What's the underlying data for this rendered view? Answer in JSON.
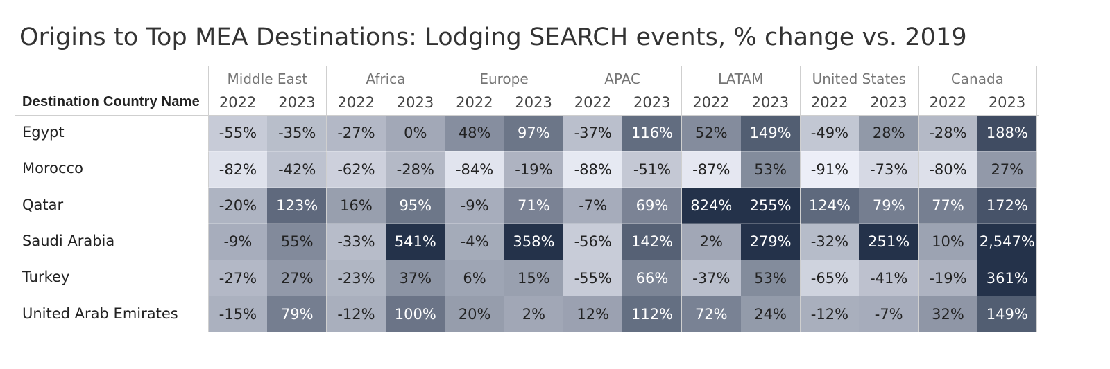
{
  "title": "Origins to Top MEA Destinations: Lodging SEARCH events, % change vs. 2019",
  "chart_data": {
    "type": "heatmap",
    "title": "Origins to Top MEA Destinations: Lodging SEARCH events, % change vs. 2019",
    "row_header": "Destination Country Name",
    "regions": [
      "Middle East",
      "Africa",
      "Europe",
      "APAC",
      "LATAM",
      "United States",
      "Canada"
    ],
    "years": [
      "2022",
      "2023"
    ],
    "rows": [
      "Egypt",
      "Morocco",
      "Qatar",
      "Saudi Arabia",
      "Turkey",
      "United Arab Emirates"
    ],
    "values": [
      [
        -55,
        -35,
        -27,
        0,
        48,
        97,
        -37,
        116,
        52,
        149,
        -49,
        28,
        -28,
        188
      ],
      [
        -82,
        -42,
        -62,
        -28,
        -84,
        -19,
        -88,
        -51,
        -87,
        53,
        -91,
        -73,
        -80,
        27
      ],
      [
        -20,
        123,
        16,
        95,
        -9,
        71,
        -7,
        69,
        824,
        255,
        124,
        79,
        77,
        172
      ],
      [
        -9,
        55,
        -33,
        541,
        -4,
        358,
        -56,
        142,
        2,
        279,
        -32,
        251,
        10,
        2547
      ],
      [
        -27,
        27,
        -23,
        37,
        6,
        15,
        -55,
        66,
        -37,
        53,
        -65,
        -41,
        -19,
        361
      ],
      [
        -15,
        79,
        -12,
        100,
        20,
        2,
        12,
        112,
        72,
        24,
        -12,
        -7,
        32,
        149
      ]
    ],
    "labels": [
      [
        "-55%",
        "-35%",
        "-27%",
        "0%",
        "48%",
        "97%",
        "-37%",
        "116%",
        "52%",
        "149%",
        "-49%",
        "28%",
        "-28%",
        "188%"
      ],
      [
        "-82%",
        "-42%",
        "-62%",
        "-28%",
        "-84%",
        "-19%",
        "-88%",
        "-51%",
        "-87%",
        "53%",
        "-91%",
        "-73%",
        "-80%",
        "27%"
      ],
      [
        "-20%",
        "123%",
        "16%",
        "95%",
        "-9%",
        "71%",
        "-7%",
        "69%",
        "824%",
        "255%",
        "124%",
        "79%",
        "77%",
        "172%"
      ],
      [
        "-9%",
        "55%",
        "-33%",
        "541%",
        "-4%",
        "358%",
        "-56%",
        "142%",
        "2%",
        "279%",
        "-32%",
        "251%",
        "10%",
        "2,547%"
      ],
      [
        "-27%",
        "27%",
        "-23%",
        "37%",
        "6%",
        "15%",
        "-55%",
        "66%",
        "-37%",
        "53%",
        "-65%",
        "-41%",
        "-19%",
        "361%"
      ],
      [
        "-15%",
        "79%",
        "-12%",
        "100%",
        "20%",
        "2%",
        "12%",
        "112%",
        "72%",
        "24%",
        "-12%",
        "-7%",
        "32%",
        "149%"
      ]
    ],
    "color_scale": {
      "low_value": -91,
      "high_value": 250,
      "low_color": "#eceef7",
      "high_color": "#24324a",
      "light_text_color": "#222222",
      "dark_text_color": "#ffffff"
    }
  }
}
